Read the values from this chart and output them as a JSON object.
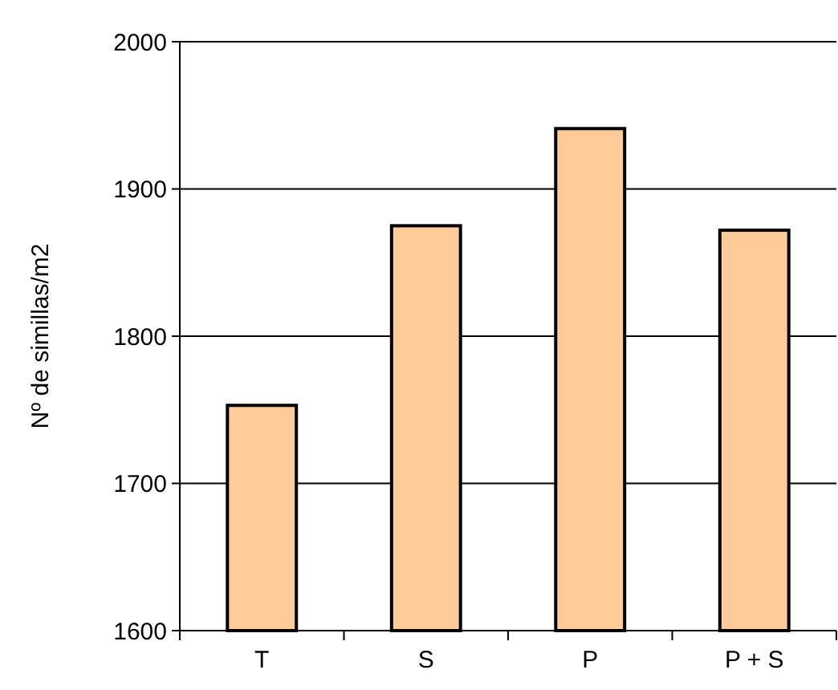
{
  "chart_data": {
    "type": "bar",
    "ylabel": "Nº de simillas/m2",
    "categories": [
      "T",
      "S",
      "P",
      "P + S"
    ],
    "values": [
      1753,
      1875,
      1941,
      1872
    ],
    "color": "#ffcc99",
    "ylim": [
      1600,
      2000
    ],
    "yticks": [
      1600,
      1700,
      1800,
      1900,
      2000
    ],
    "grid": "y"
  }
}
